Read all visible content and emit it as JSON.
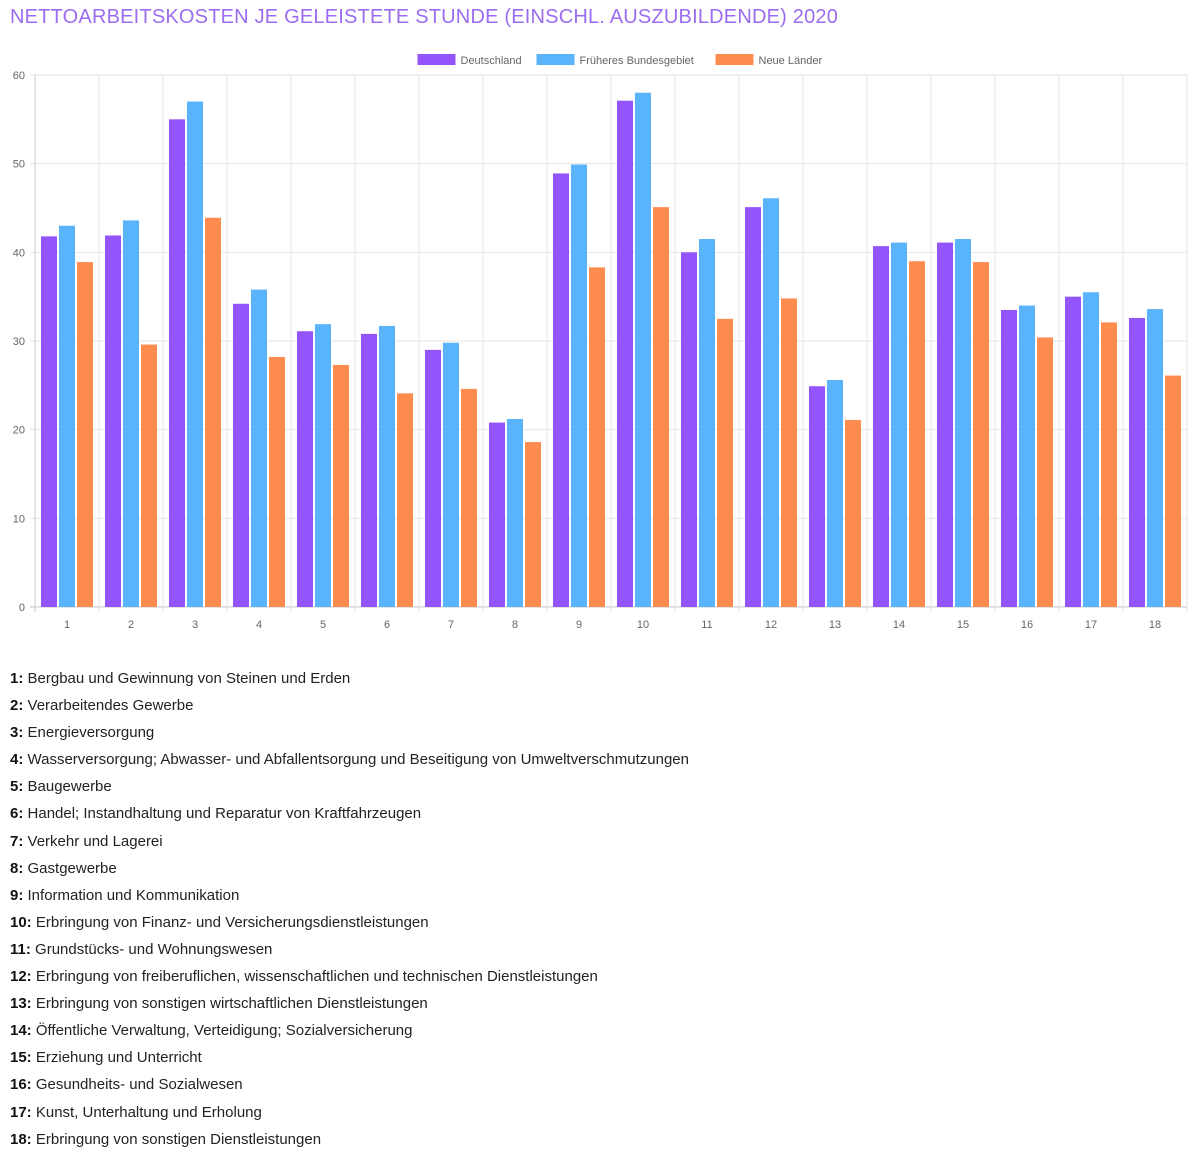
{
  "page": {
    "title": "NETTOARBEITSKOSTEN JE GELEISTETE STUNDE (EINSCHL. AUSZUBILDENDE) 2020"
  },
  "colors": {
    "title": "#9b6cf2",
    "grid": "#e6e6e6",
    "axis_text": "#666666"
  },
  "chart_data": {
    "type": "bar",
    "title": "NETTOARBEITSKOSTEN JE GELEISTETE STUNDE (EINSCHL. AUSZUBILDENDE) 2020",
    "xlabel": "",
    "ylabel": "",
    "ylim": [
      0,
      60
    ],
    "yticks": [
      0,
      10,
      20,
      30,
      40,
      50,
      60
    ],
    "grid": true,
    "legend_position": "top-center",
    "categories": [
      "1",
      "2",
      "3",
      "4",
      "5",
      "6",
      "7",
      "8",
      "9",
      "10",
      "11",
      "12",
      "13",
      "14",
      "15",
      "16",
      "17",
      "18"
    ],
    "series": [
      {
        "name": "Deutschland",
        "color": "#9354fb",
        "values": [
          41.8,
          41.9,
          55.0,
          34.2,
          31.1,
          30.8,
          29.0,
          20.8,
          48.9,
          57.1,
          40.0,
          45.1,
          24.9,
          40.7,
          41.1,
          33.5,
          35.0,
          32.6
        ]
      },
      {
        "name": "Früheres Bundesgebiet",
        "color": "#59b4fb",
        "values": [
          43.0,
          43.6,
          57.0,
          35.8,
          31.9,
          31.7,
          29.8,
          21.2,
          49.9,
          58.0,
          41.5,
          46.1,
          25.6,
          41.1,
          41.5,
          34.0,
          35.5,
          33.6
        ]
      },
      {
        "name": "Neue Länder",
        "color": "#ff8c4f",
        "values": [
          38.9,
          29.6,
          43.9,
          28.2,
          27.3,
          24.1,
          24.6,
          18.6,
          38.3,
          45.1,
          32.5,
          34.8,
          21.1,
          39.0,
          38.9,
          30.4,
          32.1,
          26.1
        ]
      }
    ]
  },
  "footnotes": [
    {
      "num": "1:",
      "text": "Bergbau und Gewinnung von Steinen und Erden"
    },
    {
      "num": "2:",
      "text": "Verarbeitendes Gewerbe"
    },
    {
      "num": "3:",
      "text": "Energieversorgung"
    },
    {
      "num": "4:",
      "text": "Wasserversorgung; Abwasser- und Abfallentsorgung und Beseitigung von Umweltverschmutzungen"
    },
    {
      "num": "5:",
      "text": "Baugewerbe"
    },
    {
      "num": "6:",
      "text": "Handel; Instandhaltung und Reparatur von Kraftfahrzeugen"
    },
    {
      "num": "7:",
      "text": "Verkehr und Lagerei"
    },
    {
      "num": "8:",
      "text": "Gastgewerbe"
    },
    {
      "num": "9:",
      "text": "Information und Kommunikation"
    },
    {
      "num": "10:",
      "text": "Erbringung von Finanz- und Versicherungsdienstleistungen"
    },
    {
      "num": "11:",
      "text": "Grundstücks- und Wohnungswesen"
    },
    {
      "num": "12:",
      "text": "Erbringung von freiberuflichen, wissenschaftlichen und technischen Dienstleistungen"
    },
    {
      "num": "13:",
      "text": "Erbringung von sonstigen wirtschaftlichen Dienstleistungen"
    },
    {
      "num": "14:",
      "text": "Öffentliche Verwaltung, Verteidigung; Sozialversicherung"
    },
    {
      "num": "15:",
      "text": "Erziehung und Unterricht"
    },
    {
      "num": "16:",
      "text": "Gesundheits- und Sozialwesen"
    },
    {
      "num": "17:",
      "text": "Kunst, Unterhaltung und Erholung"
    },
    {
      "num": "18:",
      "text": "Erbringung von sonstigen Dienstleistungen"
    }
  ]
}
